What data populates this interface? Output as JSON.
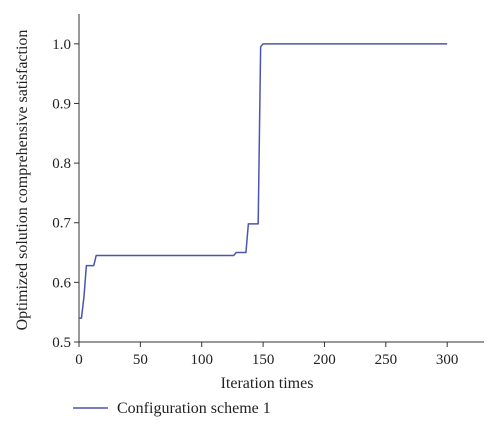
{
  "chart_data": {
    "type": "line",
    "xlabel": "Iteration times",
    "ylabel": "Optimized solution comprehensive satisfaction",
    "xlim": [
      0,
      330
    ],
    "ylim": [
      0.5,
      1.05
    ],
    "xticks": [
      0,
      50,
      100,
      150,
      200,
      250,
      300
    ],
    "yticks": [
      0.5,
      0.6,
      0.7,
      0.8,
      0.9,
      1.0
    ],
    "xtick_labels": [
      "0",
      "50",
      "100",
      "150",
      "200",
      "250",
      "300"
    ],
    "ytick_labels": [
      "0.5",
      "0.6",
      "0.7",
      "0.8",
      "0.9",
      "1.0"
    ],
    "grid": false,
    "legend_position": "bottom-left",
    "series": [
      {
        "name": "Configuration scheme 1",
        "color": "#4a55b0",
        "x": [
          0,
          2,
          4,
          6,
          12,
          14,
          126,
          128,
          136,
          138,
          146,
          148,
          150,
          300
        ],
        "y": [
          0.54,
          0.54,
          0.575,
          0.628,
          0.628,
          0.645,
          0.645,
          0.65,
          0.65,
          0.698,
          0.698,
          0.995,
          1.0,
          1.0
        ]
      }
    ]
  }
}
